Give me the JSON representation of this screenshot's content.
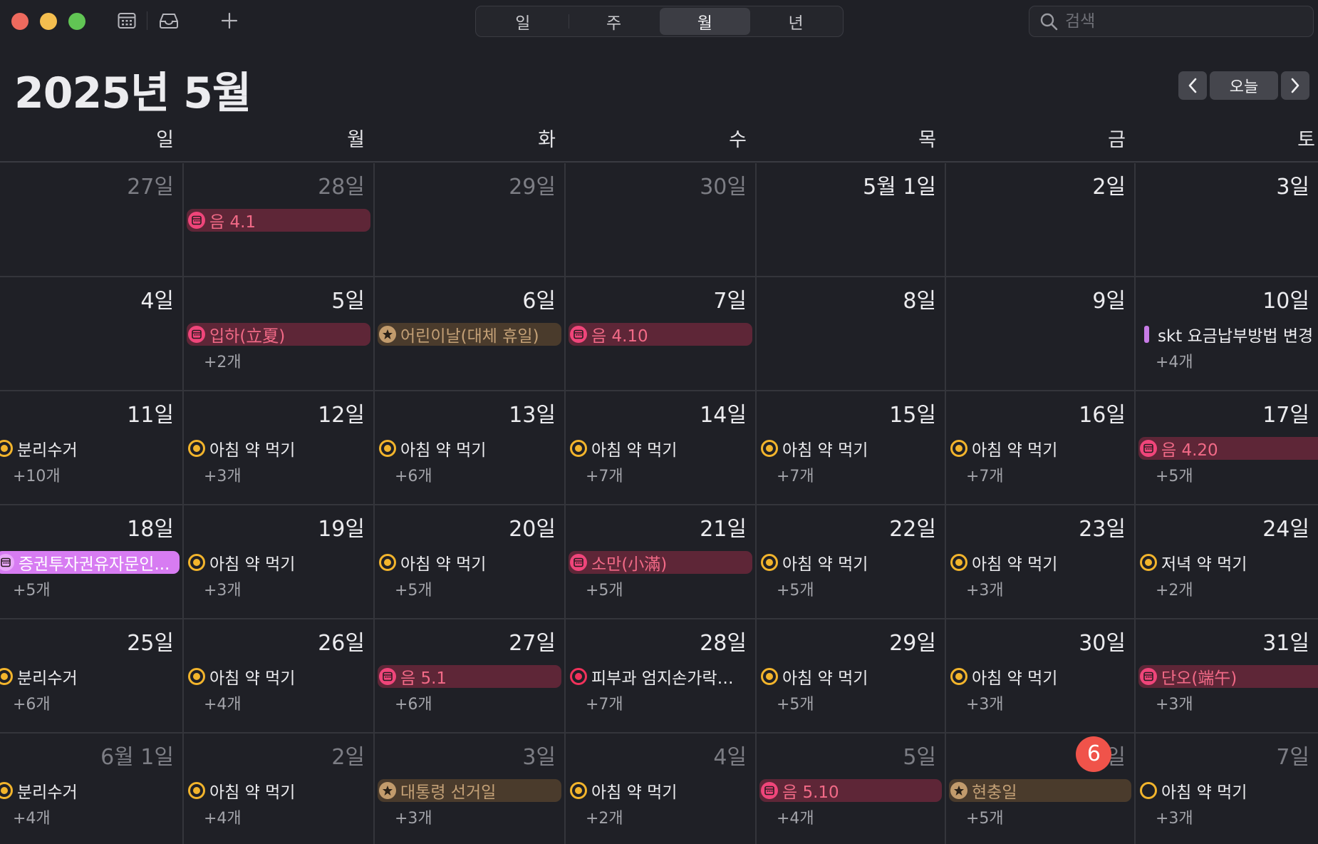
{
  "toolbar": {
    "views": [
      "일",
      "주",
      "월",
      "년"
    ],
    "active_view": "월",
    "search_placeholder": "검색",
    "icons": [
      "calendar-list-icon",
      "inbox-icon",
      "plus-icon",
      "search-icon"
    ]
  },
  "header": {
    "title": "2025년 5월",
    "today_label": "오늘"
  },
  "weekdays": [
    "일",
    "월",
    "화",
    "수",
    "목",
    "금",
    "토"
  ],
  "colors": {
    "today_badge": "#f0534a",
    "holiday_pill": "#5e2637",
    "holiday_text": "#f26a87",
    "star_pill": "#4a3b2c",
    "reminder_yellow": "#f2b42c",
    "violet": "#d77cf2"
  },
  "weeks": [
    [
      {
        "label": "27일",
        "dim": true
      },
      {
        "label": "28일",
        "dim": true,
        "event": {
          "text": "음 4.1",
          "style": "pill-red",
          "icon": "calendar-icon"
        }
      },
      {
        "label": "29일",
        "dim": true
      },
      {
        "label": "30일",
        "dim": true
      },
      {
        "label": "5월 1일"
      },
      {
        "label": "2일"
      },
      {
        "label": "3일"
      }
    ],
    [
      {
        "label": "4일"
      },
      {
        "label": "5일",
        "event": {
          "text": "입하(立夏)",
          "style": "pill-red",
          "icon": "calendar-icon"
        },
        "more": "+2개"
      },
      {
        "label": "6일",
        "event": {
          "text": "어린이날(대체 휴일)",
          "style": "pill-tan",
          "icon": "star-icon"
        }
      },
      {
        "label": "7일",
        "event": {
          "text": "음 4.10",
          "style": "pill-red",
          "icon": "calendar-icon"
        }
      },
      {
        "label": "8일"
      },
      {
        "label": "9일"
      },
      {
        "label": "10일",
        "event": {
          "text": "skt 요금납부방법 변경",
          "style": "plain",
          "icon": "violet-bar"
        },
        "more": "+4개"
      }
    ],
    [
      {
        "label": "11일",
        "event": {
          "text": "분리수거",
          "style": "plain",
          "icon": "yellow-reminder-icon"
        },
        "more": "+10개"
      },
      {
        "label": "12일",
        "event": {
          "text": "아침 약 먹기",
          "style": "plain",
          "icon": "yellow-reminder-icon"
        },
        "more": "+3개"
      },
      {
        "label": "13일",
        "event": {
          "text": "아침 약 먹기",
          "style": "plain",
          "icon": "yellow-reminder-icon"
        },
        "more": "+6개"
      },
      {
        "label": "14일",
        "event": {
          "text": "아침 약 먹기",
          "style": "plain",
          "icon": "yellow-reminder-icon"
        },
        "more": "+7개"
      },
      {
        "label": "15일",
        "event": {
          "text": "아침 약 먹기",
          "style": "plain",
          "icon": "yellow-reminder-icon"
        },
        "more": "+7개"
      },
      {
        "label": "16일",
        "event": {
          "text": "아침 약 먹기",
          "style": "plain",
          "icon": "yellow-reminder-icon"
        },
        "more": "+7개"
      },
      {
        "label": "17일",
        "event": {
          "text": "음 4.20",
          "style": "pill-red",
          "icon": "calendar-icon"
        },
        "more": "+5개"
      }
    ],
    [
      {
        "label": "18일",
        "event": {
          "text": "증권투자권유자문인...",
          "style": "pill-violet",
          "icon": "calendar-violet-icon"
        },
        "more": "+5개"
      },
      {
        "label": "19일",
        "event": {
          "text": "아침 약 먹기",
          "style": "plain",
          "icon": "yellow-reminder-icon"
        },
        "more": "+3개"
      },
      {
        "label": "20일",
        "event": {
          "text": "아침 약 먹기",
          "style": "plain",
          "icon": "yellow-reminder-icon"
        },
        "more": "+5개"
      },
      {
        "label": "21일",
        "event": {
          "text": "소만(小滿)",
          "style": "pill-red",
          "icon": "calendar-icon"
        },
        "more": "+5개"
      },
      {
        "label": "22일",
        "event": {
          "text": "아침 약 먹기",
          "style": "plain",
          "icon": "yellow-reminder-icon"
        },
        "more": "+5개"
      },
      {
        "label": "23일",
        "event": {
          "text": "아침 약 먹기",
          "style": "plain",
          "icon": "yellow-reminder-icon"
        },
        "more": "+3개"
      },
      {
        "label": "24일",
        "event": {
          "text": "저녁 약 먹기",
          "style": "plain",
          "icon": "yellow-reminder-icon"
        },
        "more": "+2개"
      }
    ],
    [
      {
        "label": "25일",
        "event": {
          "text": "분리수거",
          "style": "plain",
          "icon": "yellow-reminder-icon"
        },
        "more": "+6개"
      },
      {
        "label": "26일",
        "event": {
          "text": "아침 약 먹기",
          "style": "plain",
          "icon": "yellow-reminder-icon"
        },
        "more": "+4개"
      },
      {
        "label": "27일",
        "event": {
          "text": "음 5.1",
          "style": "pill-red",
          "icon": "calendar-icon"
        },
        "more": "+6개"
      },
      {
        "label": "28일",
        "event": {
          "text": "피부과 엄지손가락…",
          "style": "plain",
          "icon": "red-reminder-icon"
        },
        "more": "+7개"
      },
      {
        "label": "29일",
        "event": {
          "text": "아침 약 먹기",
          "style": "plain",
          "icon": "yellow-reminder-icon"
        },
        "more": "+5개"
      },
      {
        "label": "30일",
        "event": {
          "text": "아침 약 먹기",
          "style": "plain",
          "icon": "yellow-reminder-icon"
        },
        "more": "+3개"
      },
      {
        "label": "31일",
        "event": {
          "text": "단오(端午)",
          "style": "pill-red",
          "icon": "calendar-icon"
        },
        "more": "+3개"
      }
    ],
    [
      {
        "label": "6월 1일",
        "dim": true,
        "event": {
          "text": "분리수거",
          "style": "plain",
          "icon": "yellow-reminder-icon"
        },
        "more": "+4개"
      },
      {
        "label": "2일",
        "dim": true,
        "event": {
          "text": "아침 약 먹기",
          "style": "plain",
          "icon": "yellow-reminder-icon"
        },
        "more": "+4개"
      },
      {
        "label": "3일",
        "dim": true,
        "event": {
          "text": "대통령 선거일",
          "style": "pill-tan",
          "icon": "star-icon"
        },
        "more": "+3개"
      },
      {
        "label": "4일",
        "dim": true,
        "event": {
          "text": "아침 약 먹기",
          "style": "plain",
          "icon": "yellow-reminder-icon"
        },
        "more": "+2개"
      },
      {
        "label": "5일",
        "dim": true,
        "event": {
          "text": "음 5.10",
          "style": "pill-red",
          "icon": "calendar-icon"
        },
        "more": "+4개"
      },
      {
        "label": "일",
        "dim": true,
        "today": "6",
        "event": {
          "text": "현충일",
          "style": "pill-tan",
          "icon": "star-icon"
        },
        "more": "+5개"
      },
      {
        "label": "7일",
        "dim": true,
        "event": {
          "text": "아침 약 먹기",
          "style": "plain",
          "icon": "yellow-reminder-hollow-icon"
        },
        "more": "+3개"
      }
    ]
  ]
}
